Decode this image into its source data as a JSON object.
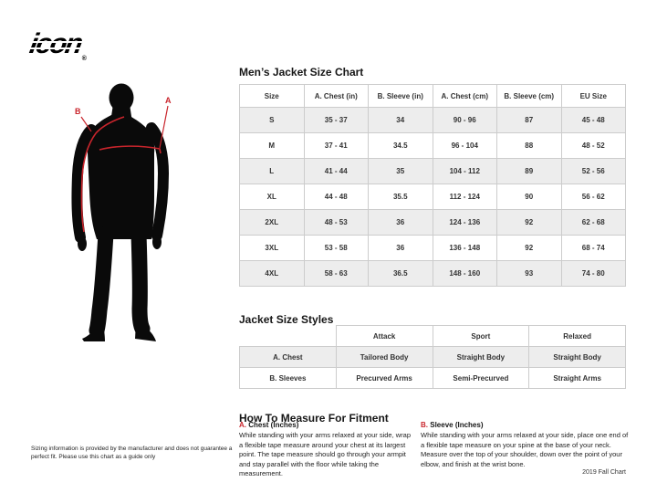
{
  "theme": {
    "accent_red": "#c9252c",
    "table_border": "#cccccc",
    "row_stripe": "#ededed",
    "text": "#333333"
  },
  "brand": {
    "logo_text": "icon",
    "registered_mark": "®"
  },
  "figure": {
    "label_a": "A",
    "label_b": "B",
    "silhouette_icon": "standing-male-silhouette",
    "chest_line_icon": "chest-measurement-line",
    "sleeve_line_icon": "sleeve-measurement-line"
  },
  "size_chart": {
    "title": "Men’s Jacket Size Chart",
    "columns": [
      "Size",
      "A. Chest (in)",
      "B. Sleeve (in)",
      "A. Chest (cm)",
      "B. Sleeve (cm)",
      "EU Size"
    ],
    "rows": [
      [
        "S",
        "35 - 37",
        "34",
        "90 - 96",
        "87",
        "45 - 48"
      ],
      [
        "M",
        "37 - 41",
        "34.5",
        "96 - 104",
        "88",
        "48 - 52"
      ],
      [
        "L",
        "41 - 44",
        "35",
        "104 - 112",
        "89",
        "52 - 56"
      ],
      [
        "XL",
        "44 - 48",
        "35.5",
        "112 - 124",
        "90",
        "56 - 62"
      ],
      [
        "2XL",
        "48 - 53",
        "36",
        "124 - 136",
        "92",
        "62 - 68"
      ],
      [
        "3XL",
        "53 - 58",
        "36",
        "136 - 148",
        "92",
        "68 - 74"
      ],
      [
        "4XL",
        "58 - 63",
        "36.5",
        "148 - 160",
        "93",
        "74 - 80"
      ]
    ]
  },
  "size_styles": {
    "title": "Jacket Size Styles",
    "columns": [
      "",
      "Attack",
      "Sport",
      "Relaxed"
    ],
    "rows": [
      [
        "A. Chest",
        "Tailored Body",
        "Straight Body",
        "Straight Body"
      ],
      [
        "B. Sleeves",
        "Precurved Arms",
        "Semi-Precurved",
        "Straight Arms"
      ]
    ]
  },
  "how_to_measure": {
    "title": "How To Measure For Fitment",
    "sections": [
      {
        "letter": "A.",
        "heading": "Chest (Inches)",
        "body": "While standing with your arms relaxed at your side, wrap a flexible tape measure around your chest at its largest point. The tape measure should go through your armpit and stay parallel with the floor while taking the measurement."
      },
      {
        "letter": "B.",
        "heading": "Sleeve (Inches)",
        "body": "While standing with your arms relaxed at your side, place one end of a flexible tape measure on your spine at the base of your neck. Measure over the top of your shoulder, down over the point of your elbow, and finish at the wrist bone."
      }
    ]
  },
  "footnote": {
    "line1": "Sizing information is provided by the manufacturer and does not guarantee a perfect fit.",
    "line2": "Please use this chart as a guide only"
  },
  "footer": {
    "chart_version": "2019 Fall Chart"
  }
}
